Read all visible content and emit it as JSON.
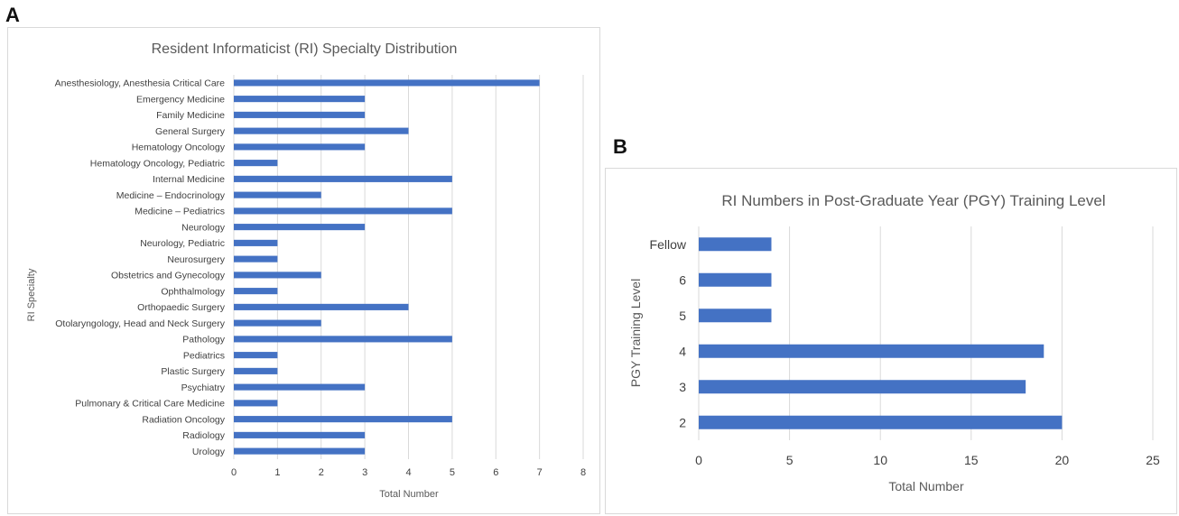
{
  "panels": {
    "a_label": "A",
    "b_label": "B"
  },
  "chart_data": [
    {
      "type": "bar",
      "orientation": "horizontal",
      "title": "Resident Informaticist (RI) Specialty Distribution",
      "xlabel": "Total Number",
      "ylabel": "RI Specialty",
      "xlim": [
        0,
        8
      ],
      "xticks": [
        "0",
        "1",
        "2",
        "3",
        "4",
        "5",
        "6",
        "7",
        "8"
      ],
      "grid": true,
      "color": "#4472c4",
      "categories": [
        "Anesthesiology, Anesthesia Critical Care",
        "Emergency Medicine",
        "Family Medicine",
        "General Surgery",
        "Hematology Oncology",
        "Hematology Oncology, Pediatric",
        "Internal Medicine",
        "Medicine – Endocrinology",
        "Medicine – Pediatrics",
        "Neurology",
        "Neurology, Pediatric",
        "Neurosurgery",
        "Obstetrics and Gynecology",
        "Ophthalmology",
        "Orthopaedic Surgery",
        "Otolaryngology, Head and Neck Surgery",
        "Pathology",
        "Pediatrics",
        "Plastic Surgery",
        "Psychiatry",
        "Pulmonary & Critical Care Medicine",
        "Radiation Oncology",
        "Radiology",
        "Urology"
      ],
      "values": [
        7,
        3,
        3,
        4,
        3,
        1,
        5,
        2,
        5,
        3,
        1,
        1,
        2,
        1,
        4,
        2,
        5,
        1,
        1,
        3,
        1,
        5,
        3,
        3
      ]
    },
    {
      "type": "bar",
      "orientation": "horizontal",
      "title": "RI Numbers in Post-Graduate Year (PGY) Training Level",
      "xlabel": "Total Number",
      "ylabel": "PGY Training Level",
      "xlim": [
        0,
        25
      ],
      "xticks": [
        "0",
        "5",
        "10",
        "15",
        "20",
        "25"
      ],
      "grid": true,
      "color": "#4472c4",
      "categories": [
        "Fellow",
        "6",
        "5",
        "4",
        "3",
        "2"
      ],
      "values": [
        4,
        4,
        4,
        19,
        18,
        20
      ]
    }
  ]
}
